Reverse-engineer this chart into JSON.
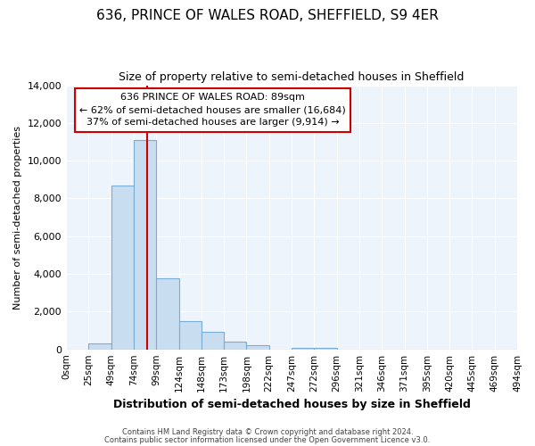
{
  "title": "636, PRINCE OF WALES ROAD, SHEFFIELD, S9 4ER",
  "subtitle": "Size of property relative to semi-detached houses in Sheffield",
  "xlabel": "Distribution of semi-detached houses by size in Sheffield",
  "ylabel": "Number of semi-detached properties",
  "bin_labels": [
    "0sqm",
    "25sqm",
    "49sqm",
    "74sqm",
    "99sqm",
    "124sqm",
    "148sqm",
    "173sqm",
    "198sqm",
    "222sqm",
    "247sqm",
    "272sqm",
    "296sqm",
    "321sqm",
    "346sqm",
    "371sqm",
    "395sqm",
    "420sqm",
    "445sqm",
    "469sqm",
    "494sqm"
  ],
  "bin_edges": [
    0,
    25,
    49,
    74,
    99,
    124,
    148,
    173,
    198,
    222,
    247,
    272,
    296,
    321,
    346,
    371,
    395,
    420,
    445,
    469,
    494
  ],
  "bar_heights": [
    0,
    300,
    8700,
    11100,
    3750,
    1500,
    950,
    400,
    200,
    0,
    100,
    100,
    0,
    0,
    0,
    0,
    0,
    0,
    0,
    0
  ],
  "bar_color": "#c8ddf0",
  "bar_edge_color": "#7aadd4",
  "property_size": 89,
  "annotation_title": "636 PRINCE OF WALES ROAD: 89sqm",
  "annotation_line1": "← 62% of semi-detached houses are smaller (16,684)",
  "annotation_line2": "37% of semi-detached houses are larger (9,914) →",
  "annotation_box_color": "#ffffff",
  "annotation_box_edge_color": "#cc0000",
  "vline_color": "#cc0000",
  "ylim": [
    0,
    14000
  ],
  "yticks": [
    0,
    2000,
    4000,
    6000,
    8000,
    10000,
    12000,
    14000
  ],
  "footer1": "Contains HM Land Registry data © Crown copyright and database right 2024.",
  "footer2": "Contains public sector information licensed under the Open Government Licence v3.0.",
  "bg_color": "#ffffff",
  "plot_bg_color": "#eef4fb",
  "grid_color": "#ffffff",
  "title_fontsize": 11,
  "subtitle_fontsize": 9
}
